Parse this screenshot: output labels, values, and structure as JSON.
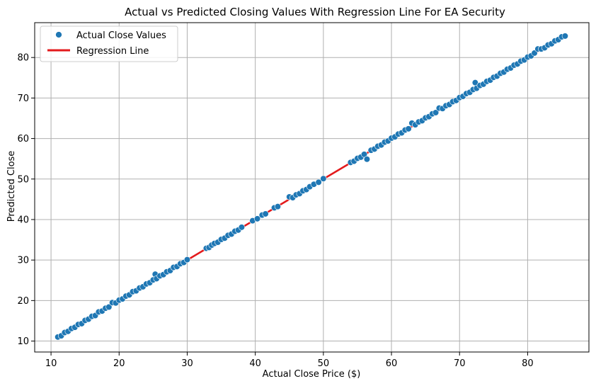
{
  "chart_data": {
    "type": "scatter",
    "title": "Actual vs Predicted Closing Values With Regression Line For EA Security",
    "xlabel": "Actual Close Price ($)",
    "ylabel": "Predicted Close",
    "xlim": [
      7.6,
      89.0
    ],
    "ylim": [
      7.3,
      88.6
    ],
    "xticks": [
      10,
      20,
      30,
      40,
      50,
      60,
      70,
      80
    ],
    "yticks": [
      10,
      20,
      30,
      40,
      50,
      60,
      70,
      80
    ],
    "grid": true,
    "legend_position": "top-left",
    "colors": {
      "points": "#1f77b4",
      "regression": "#e31a1c",
      "grid": "#b0b0b0"
    },
    "series": [
      {
        "name": "Actual Close Values",
        "kind": "scatter",
        "color": "#1f77b4",
        "x": [
          11.0,
          11.5,
          12.0,
          12.5,
          13.0,
          13.5,
          14.0,
          14.5,
          15.0,
          15.5,
          16.0,
          16.5,
          17.0,
          17.5,
          18.0,
          18.5,
          19.0,
          19.5,
          20.0,
          20.5,
          21.0,
          21.5,
          22.0,
          22.5,
          23.0,
          23.5,
          24.0,
          24.5,
          25.0,
          25.3,
          25.5,
          26.0,
          26.5,
          27.0,
          27.5,
          28.0,
          28.5,
          29.0,
          29.5,
          30.0,
          32.8,
          33.2,
          33.6,
          34.0,
          34.5,
          35.0,
          35.5,
          36.0,
          36.5,
          37.0,
          37.5,
          38.0,
          39.6,
          40.3,
          41.0,
          41.5,
          42.8,
          43.3,
          45.0,
          45.5,
          46.0,
          46.5,
          47.0,
          47.5,
          48.0,
          48.6,
          49.3,
          50.0,
          54.0,
          54.5,
          55.0,
          55.5,
          56.0,
          56.4,
          57.0,
          57.5,
          58.0,
          58.5,
          59.0,
          59.5,
          60.0,
          60.5,
          61.0,
          61.5,
          62.0,
          62.5,
          63.0,
          63.5,
          64.0,
          64.5,
          65.0,
          65.5,
          66.0,
          66.5,
          67.0,
          67.5,
          68.0,
          68.5,
          69.0,
          69.5,
          70.0,
          70.5,
          71.0,
          71.5,
          72.0,
          72.3,
          72.5,
          73.0,
          73.5,
          74.0,
          74.5,
          75.0,
          75.5,
          76.0,
          76.5,
          77.0,
          77.5,
          78.0,
          78.5,
          79.0,
          79.5,
          80.0,
          80.5,
          81.0,
          81.5,
          82.0,
          82.5,
          83.0,
          83.5,
          84.0,
          84.5,
          85.0,
          85.5
        ],
        "y": [
          11.0,
          11.3,
          12.1,
          12.4,
          13.1,
          13.4,
          14.1,
          14.3,
          15.1,
          15.4,
          16.1,
          16.3,
          17.2,
          17.4,
          18.1,
          18.4,
          19.5,
          19.4,
          20.1,
          20.4,
          21.1,
          21.4,
          22.2,
          22.4,
          23.1,
          23.4,
          24.1,
          24.4,
          25.1,
          26.5,
          25.4,
          26.1,
          26.4,
          27.1,
          27.4,
          28.2,
          28.4,
          29.1,
          29.4,
          30.1,
          32.9,
          33.1,
          33.7,
          34.1,
          34.4,
          35.1,
          35.4,
          36.1,
          36.4,
          37.1,
          37.4,
          38.1,
          39.7,
          40.2,
          41.1,
          41.4,
          42.9,
          43.2,
          45.6,
          45.4,
          46.1,
          46.4,
          47.1,
          47.4,
          48.1,
          48.7,
          49.2,
          50.1,
          54.1,
          54.4,
          55.1,
          55.4,
          56.1,
          54.9,
          57.1,
          57.4,
          58.1,
          58.4,
          59.1,
          59.4,
          60.1,
          60.4,
          61.1,
          61.4,
          62.1,
          62.4,
          63.8,
          63.4,
          64.1,
          64.4,
          65.1,
          65.4,
          66.1,
          66.4,
          67.5,
          67.4,
          68.1,
          68.4,
          69.1,
          69.4,
          70.1,
          70.4,
          71.1,
          71.4,
          72.1,
          73.8,
          72.4,
          73.1,
          73.4,
          74.1,
          74.4,
          75.1,
          75.4,
          76.1,
          76.4,
          77.1,
          77.4,
          78.1,
          78.4,
          79.1,
          79.4,
          80.1,
          80.4,
          81.1,
          82.1,
          82.1,
          82.4,
          83.1,
          83.4,
          84.1,
          84.4,
          85.1,
          85.3
        ]
      },
      {
        "name": "Regression Line",
        "kind": "line",
        "color": "#e31a1c",
        "x": [
          11.0,
          85.5
        ],
        "y": [
          11.0,
          85.5
        ]
      }
    ]
  }
}
